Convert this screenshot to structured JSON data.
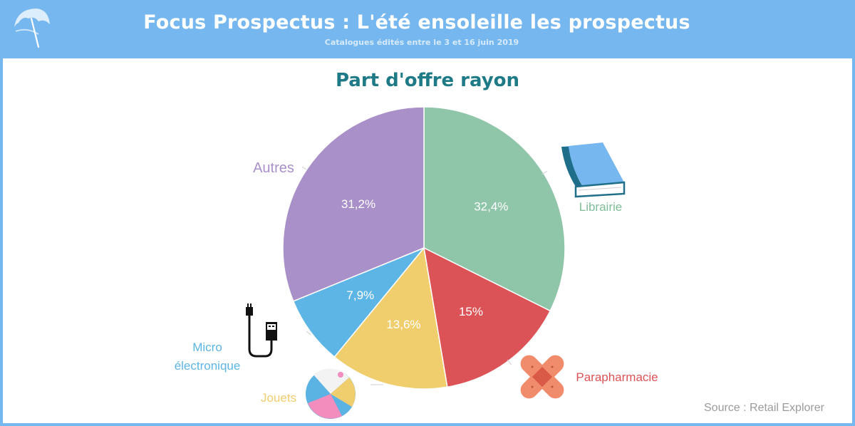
{
  "header": {
    "title": "Focus Prospectus : L'été ensoleille les prospectus",
    "subtitle": "Catalogues édités entre le 3 et 16 juin 2019"
  },
  "source": "Source : Retail Explorer",
  "chart_data": {
    "type": "pie",
    "title": "Part d'offre rayon",
    "slices": [
      {
        "label": "Librairie",
        "value": 32.4,
        "display": "32,4%",
        "color": "#8fc5a8"
      },
      {
        "label": "Parapharmacie",
        "value": 15.0,
        "display": "15%",
        "color": "#dc5357"
      },
      {
        "label": "Jouets",
        "value": 13.6,
        "display": "13,6%",
        "color": "#f0cd6d"
      },
      {
        "label": "Micro électronique",
        "value": 7.9,
        "display": "7,9%",
        "color": "#5db5e6"
      },
      {
        "label": "Autres",
        "value": 31.2,
        "display": "31,2%",
        "color": "#a990c8"
      }
    ],
    "start_angle_deg": 0,
    "direction": "clockwise"
  }
}
